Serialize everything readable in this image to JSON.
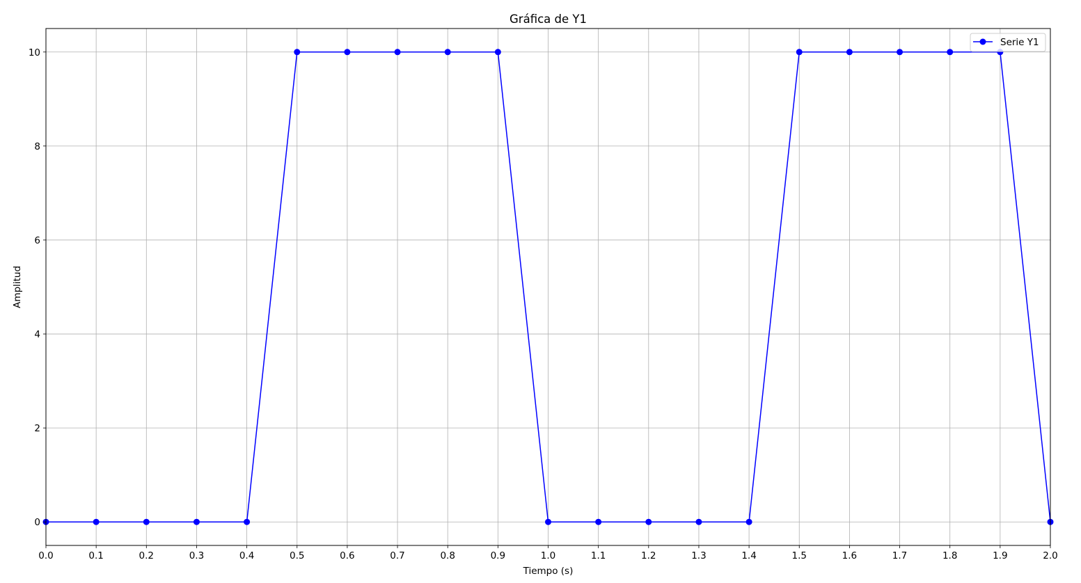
{
  "chart_data": {
    "type": "line",
    "title": "Gráfica de Y1",
    "xlabel": "Tiempo (s)",
    "ylabel": "Amplitud",
    "xlim": [
      0.0,
      2.0
    ],
    "ylim": [
      -0.5,
      10.5
    ],
    "xticks": [
      "0.0",
      "0.1",
      "0.2",
      "0.3",
      "0.4",
      "0.5",
      "0.6",
      "0.7",
      "0.8",
      "0.9",
      "1.0",
      "1.1",
      "1.2",
      "1.3",
      "1.4",
      "1.5",
      "1.6",
      "1.7",
      "1.8",
      "1.9",
      "2.0"
    ],
    "yticks": [
      "0",
      "2",
      "4",
      "6",
      "8",
      "10"
    ],
    "grid": true,
    "legend_position": "top-right",
    "series": [
      {
        "name": "Serie Y1",
        "color": "#0000ff",
        "marker": "circle",
        "x": [
          0.0,
          0.1,
          0.2,
          0.3,
          0.4,
          0.5,
          0.6,
          0.7,
          0.8,
          0.9,
          1.0,
          1.1,
          1.2,
          1.3,
          1.4,
          1.5,
          1.6,
          1.7,
          1.8,
          1.9,
          2.0
        ],
        "y": [
          0,
          0,
          0,
          0,
          0,
          10,
          10,
          10,
          10,
          10,
          0,
          0,
          0,
          0,
          0,
          10,
          10,
          10,
          10,
          10,
          0
        ]
      }
    ]
  }
}
